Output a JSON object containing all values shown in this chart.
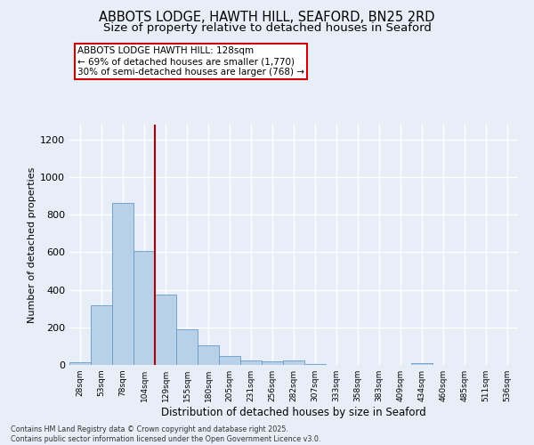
{
  "title1": "ABBOTS LODGE, HAWTH HILL, SEAFORD, BN25 2RD",
  "title2": "Size of property relative to detached houses in Seaford",
  "xlabel": "Distribution of detached houses by size in Seaford",
  "ylabel": "Number of detached properties",
  "categories": [
    "28sqm",
    "53sqm",
    "78sqm",
    "104sqm",
    "129sqm",
    "155sqm",
    "180sqm",
    "205sqm",
    "231sqm",
    "256sqm",
    "282sqm",
    "307sqm",
    "333sqm",
    "358sqm",
    "383sqm",
    "409sqm",
    "434sqm",
    "460sqm",
    "485sqm",
    "511sqm",
    "536sqm"
  ],
  "values": [
    14,
    320,
    865,
    608,
    375,
    192,
    105,
    46,
    22,
    18,
    22,
    5,
    0,
    0,
    0,
    0,
    8,
    0,
    0,
    0,
    0
  ],
  "bar_color": "#b8d0e8",
  "bar_edge_color": "#6699cc",
  "vline_color": "#aa0000",
  "annotation_title": "ABBOTS LODGE HAWTH HILL: 128sqm",
  "annotation_line1": "← 69% of detached houses are smaller (1,770)",
  "annotation_line2": "30% of semi-detached houses are larger (768) →",
  "annotation_box_color": "#ffffff",
  "annotation_box_edge": "#cc0000",
  "footer1": "Contains HM Land Registry data © Crown copyright and database right 2025.",
  "footer2": "Contains public sector information licensed under the Open Government Licence v3.0.",
  "background_color": "#e8eef8",
  "ylim": [
    0,
    1280
  ],
  "yticks": [
    0,
    200,
    400,
    600,
    800,
    1000,
    1200
  ],
  "grid_color": "#ffffff",
  "title_fontsize": 10.5,
  "subtitle_fontsize": 9.5
}
